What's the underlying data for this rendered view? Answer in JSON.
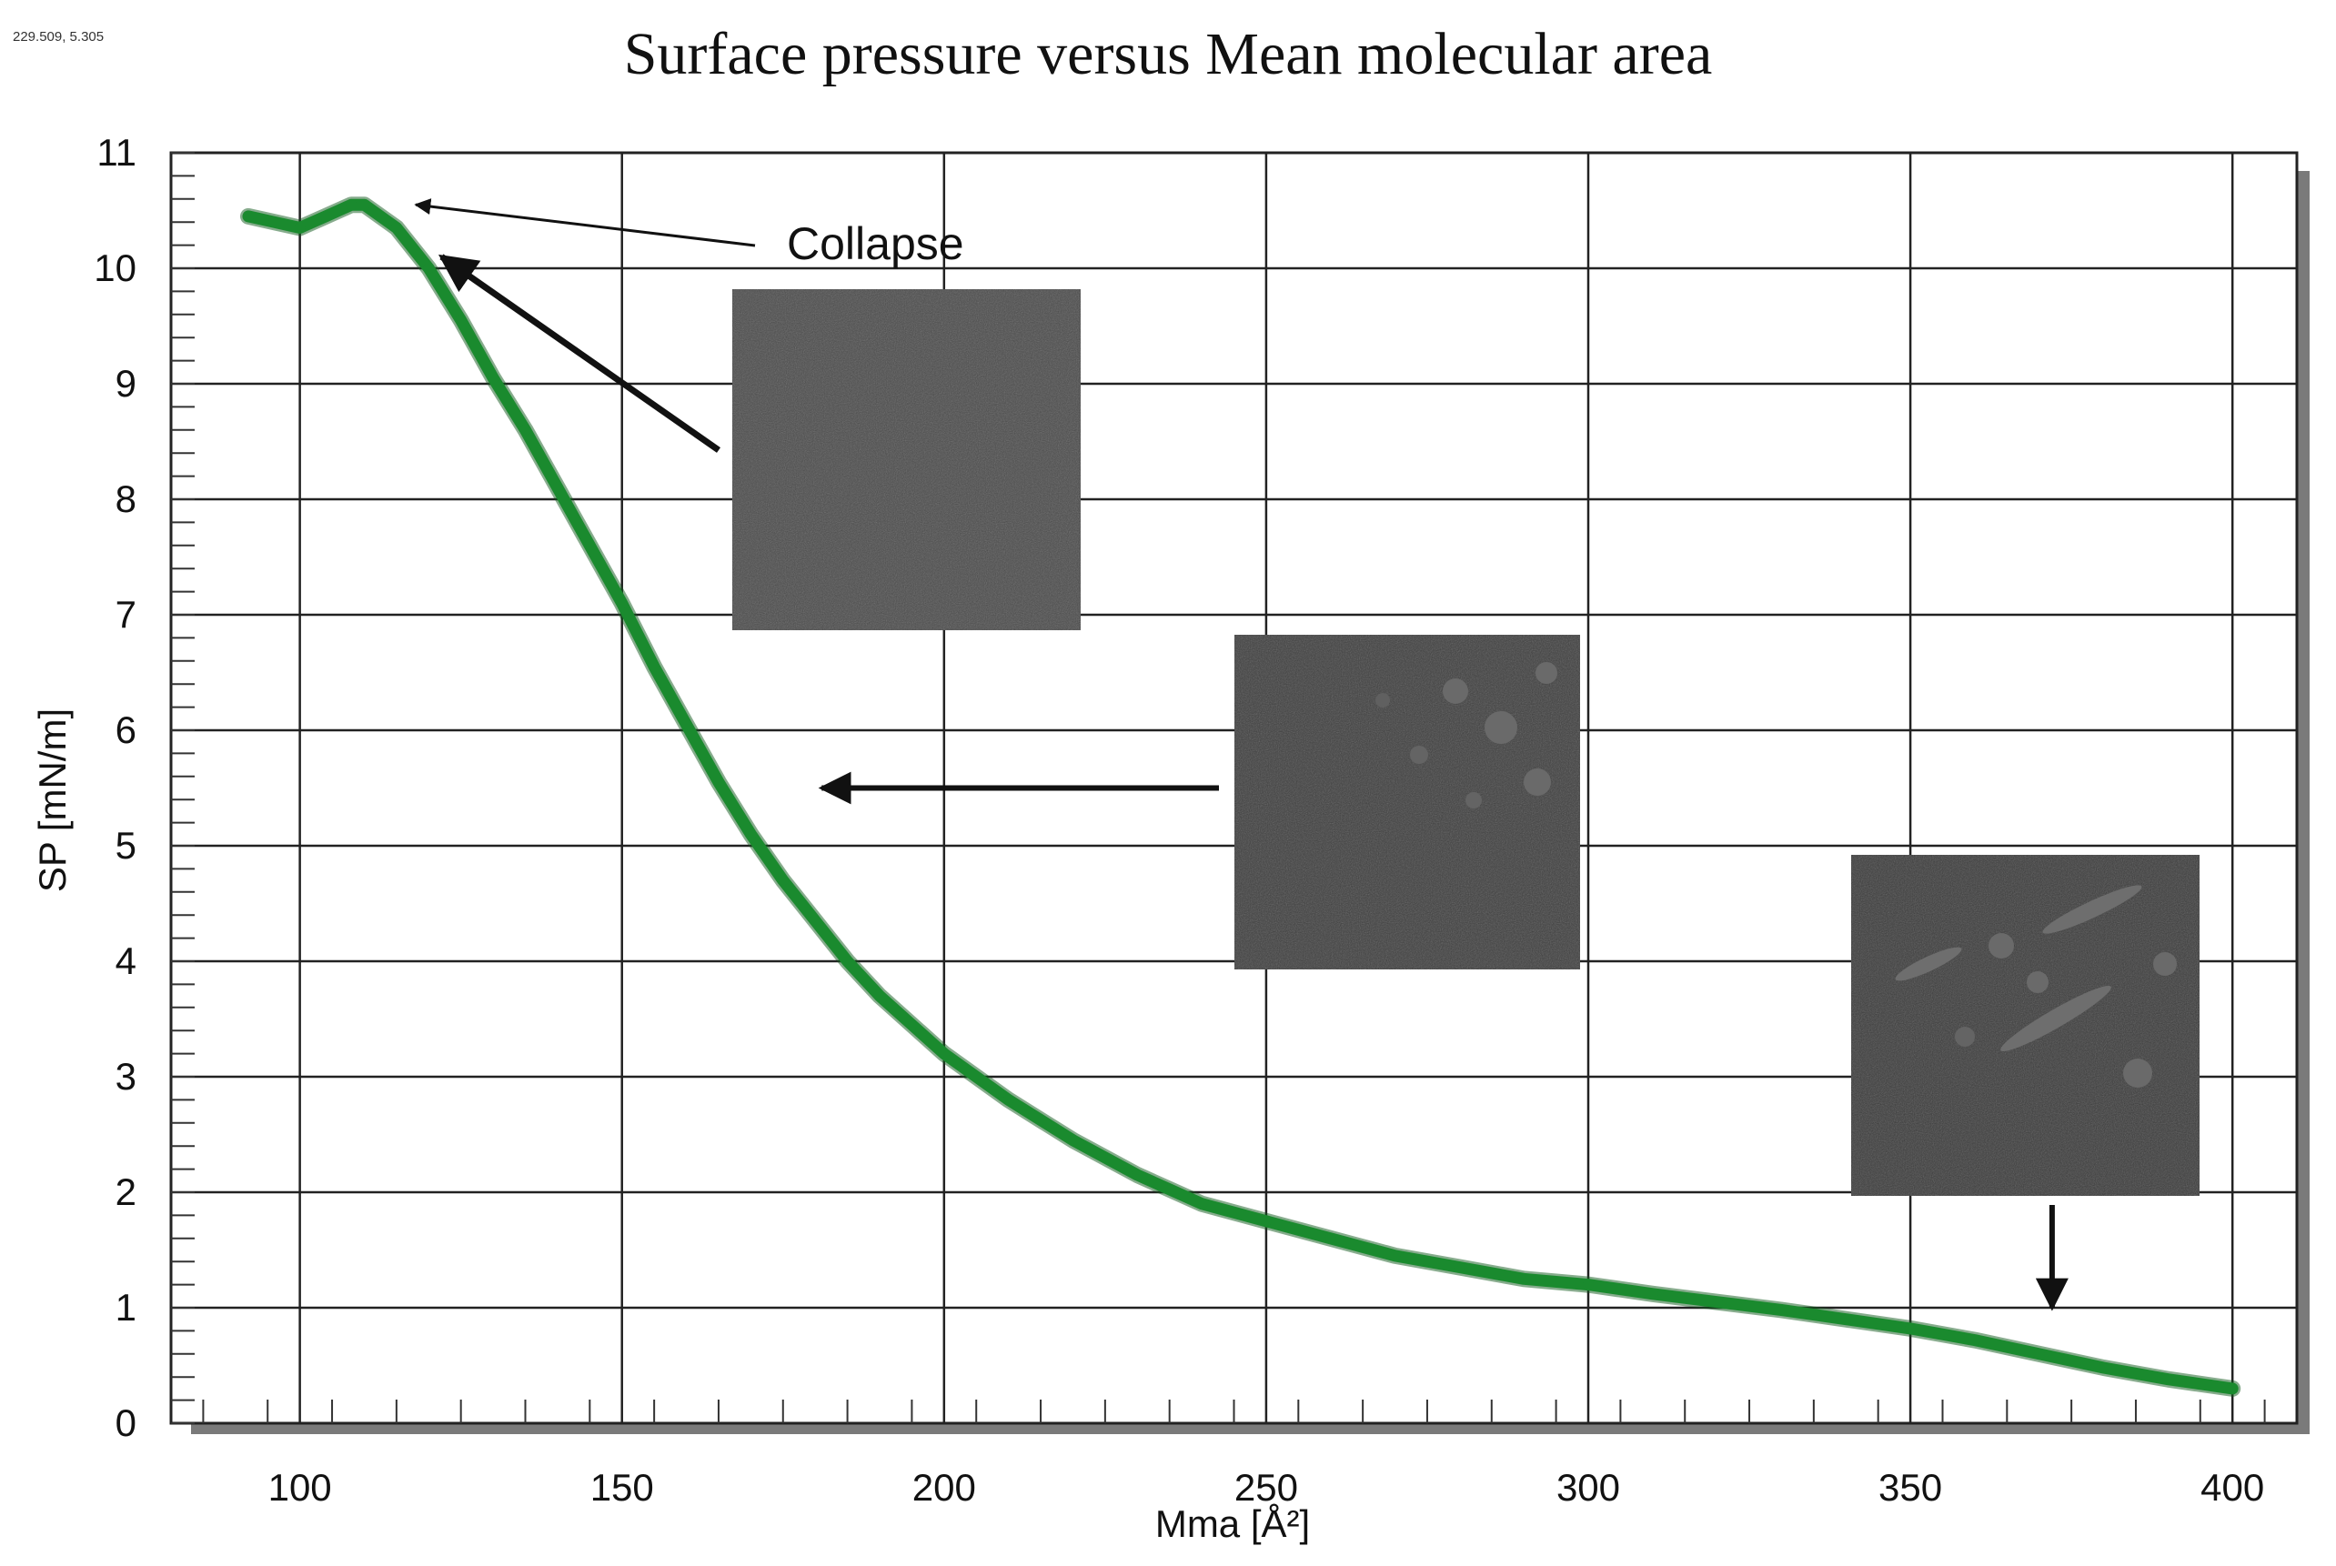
{
  "coordinate_readout": "229.509, 5.305",
  "chart_data": {
    "type": "line",
    "title": "Surface pressure versus Mean molecular area",
    "xlabel": "Mma [Å²]",
    "ylabel": "SP [mN/m]",
    "xlim": [
      80,
      410
    ],
    "ylim": [
      0,
      11
    ],
    "xticks": [
      100,
      150,
      200,
      250,
      300,
      350,
      400
    ],
    "yticks": [
      0,
      1,
      2,
      3,
      4,
      5,
      6,
      7,
      8,
      9,
      10,
      11
    ],
    "grid": true,
    "series": [
      {
        "name": "SP",
        "color": "#1a8a2e",
        "x": [
          92,
          96,
          100,
          104,
          108,
          110,
          115,
          120,
          125,
          130,
          135,
          140,
          145,
          150,
          155,
          160,
          165,
          170,
          175,
          180,
          185,
          190,
          195,
          200,
          210,
          220,
          230,
          240,
          250,
          260,
          270,
          280,
          290,
          300,
          310,
          320,
          330,
          340,
          350,
          360,
          370,
          380,
          390,
          400
        ],
        "y": [
          10.45,
          10.4,
          10.35,
          10.45,
          10.55,
          10.55,
          10.35,
          10.0,
          9.55,
          9.05,
          8.6,
          8.1,
          7.6,
          7.1,
          6.55,
          6.05,
          5.55,
          5.1,
          4.7,
          4.35,
          4.0,
          3.7,
          3.45,
          3.2,
          2.8,
          2.45,
          2.15,
          1.9,
          1.75,
          1.6,
          1.45,
          1.35,
          1.25,
          1.2,
          1.12,
          1.05,
          0.98,
          0.9,
          0.82,
          0.72,
          0.6,
          0.48,
          0.38,
          0.3
        ]
      }
    ],
    "annotations": [
      {
        "text": "Collapse",
        "target": [
          118,
          10.55
        ]
      }
    ],
    "inset_arrow_targets": [
      {
        "name": "inset-top",
        "x": 122,
        "y": 10.1
      },
      {
        "name": "inset-middle",
        "x": 181,
        "y": 5.5
      },
      {
        "name": "inset-right",
        "x": 372,
        "y": 1.0
      }
    ]
  },
  "colors": {
    "line": "#1a8a2e",
    "grid": "#222222",
    "frame_shadow": "#777777"
  }
}
